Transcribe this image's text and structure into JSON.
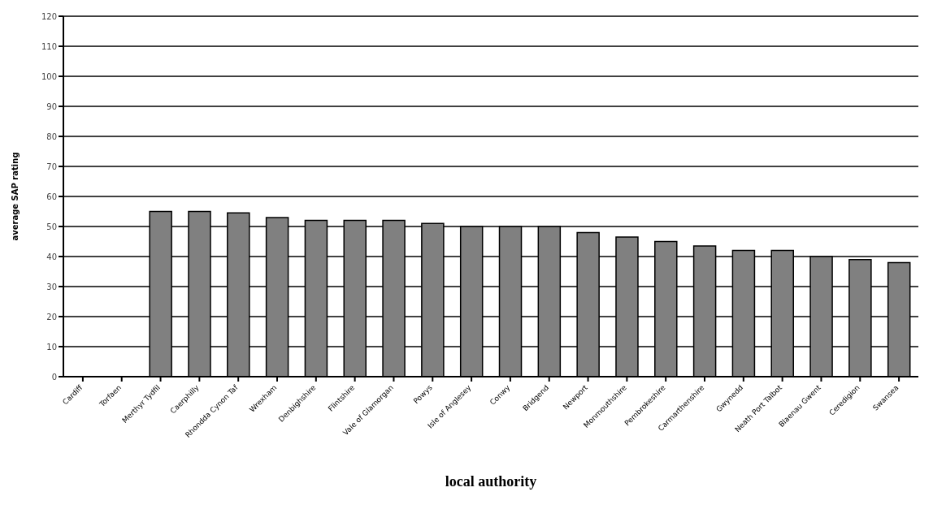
{
  "chart_data": {
    "type": "bar",
    "xlabel": "local authority",
    "ylabel": "average SAP rating",
    "categories": [
      "Cardiff",
      "Torfaen",
      "Merthyr Tydfil",
      "Caerphilly",
      "Rhondda Cynon Taf",
      "Wrexham",
      "Denbighshire",
      "Flintshire",
      "Vale of Glamorgan",
      "Powys",
      "Isle of Anglesey",
      "Conwy",
      "Bridgend",
      "Newport",
      "Monmouthshire",
      "Pembrokeshire",
      "Carmarthenshire",
      "Gwynedd",
      "Neath Port Talbot",
      "Blaenau Gwent",
      "Ceredigion",
      "Swansea"
    ],
    "values": [
      null,
      null,
      55,
      55,
      54.5,
      53,
      52,
      52,
      52,
      51,
      50,
      50,
      50,
      48,
      46.5,
      45,
      43.5,
      42,
      42,
      40,
      39,
      38
    ],
    "color": "#808080",
    "ylim": [
      0,
      120
    ],
    "yticks": [
      0,
      10,
      20,
      30,
      40,
      50,
      60,
      70,
      80,
      90,
      100,
      110,
      120
    ],
    "grid": "y"
  }
}
